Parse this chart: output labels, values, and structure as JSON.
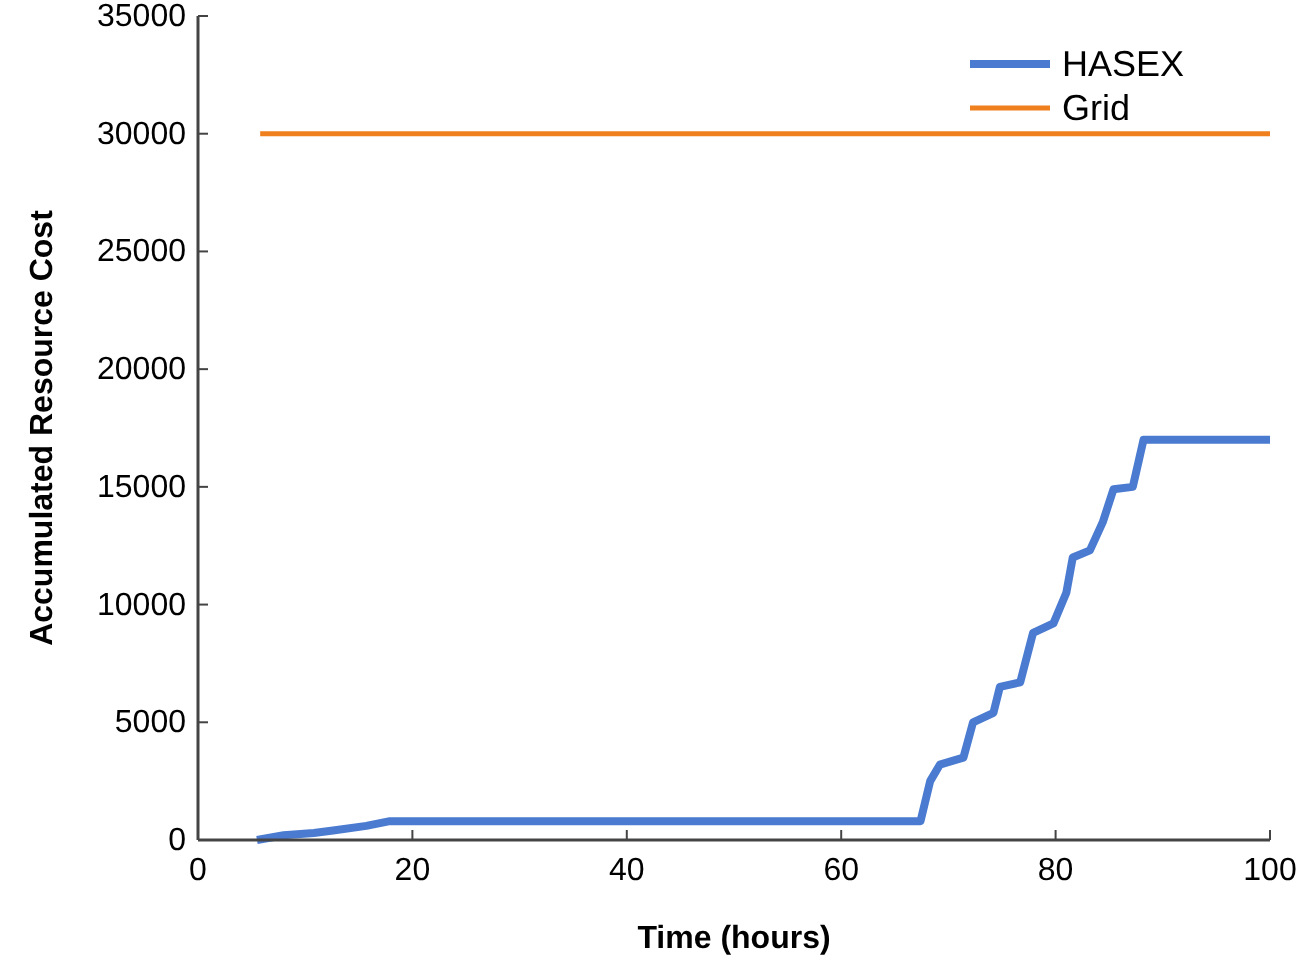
{
  "chart_data": {
    "type": "line",
    "xlabel": "Time (hours)",
    "ylabel": "Accumulated Resource Cost",
    "xlim": [
      0,
      100
    ],
    "xticks": [
      0,
      20,
      40,
      60,
      80,
      100
    ],
    "ylim": [
      0,
      35000
    ],
    "yticks": [
      0,
      5000,
      10000,
      15000,
      20000,
      25000,
      30000,
      35000
    ],
    "legend": "top right",
    "grid": false,
    "series": [
      {
        "name": "HASEX",
        "color": "#4a7bd0",
        "x": [
          5.5,
          8,
          10.8,
          12.6,
          15.7,
          17.9,
          30,
          50,
          67.4,
          68.3,
          69.2,
          71.4,
          72.3,
          74.2,
          74.8,
          76.7,
          77.9,
          79.8,
          81,
          81.6,
          83.2,
          84.4,
          85.4,
          87.2,
          88.2,
          100
        ],
        "values": [
          0,
          200,
          300,
          400,
          600,
          800,
          800,
          800,
          800,
          2500,
          3200,
          3500,
          5000,
          5400,
          6500,
          6700,
          8800,
          9200,
          10500,
          12000,
          12300,
          13500,
          14900,
          15000,
          17000,
          17000
        ]
      },
      {
        "name": "Grid",
        "color": "#f07f1e",
        "x": [
          5.8,
          100
        ],
        "values": [
          30000,
          30000
        ]
      }
    ]
  }
}
